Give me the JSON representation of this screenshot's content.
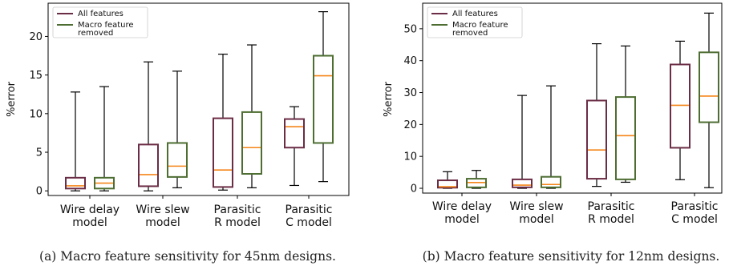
{
  "colors": {
    "all_features": "#6b2c45",
    "macro_removed": "#4d6d31",
    "median": "#f58518",
    "whisker": "#000000"
  },
  "chart_data": [
    {
      "type": "box",
      "caption": "(a) Macro feature sensitivity for 45nm designs.",
      "ylabel": "%error",
      "ylim": [
        -0.6,
        24.3
      ],
      "yticks": [
        0,
        5,
        10,
        15,
        20
      ],
      "categories": [
        [
          "Wire delay",
          "model"
        ],
        [
          "Wire slew",
          "model"
        ],
        [
          "Parasitic",
          "R model"
        ],
        [
          "Parasitic",
          "C model"
        ]
      ],
      "legend": {
        "position": "top-left",
        "entries": [
          [
            "All features"
          ],
          [
            "Macro feature",
            "removed"
          ]
        ]
      },
      "series": [
        {
          "name": "All features",
          "boxes": [
            {
              "min": 0.0,
              "q1": 0.3,
              "median": 0.65,
              "q3": 1.7,
              "max": 12.8
            },
            {
              "min": 0.0,
              "q1": 0.6,
              "median": 2.1,
              "q3": 6.0,
              "max": 16.7
            },
            {
              "min": 0.1,
              "q1": 0.5,
              "median": 2.7,
              "q3": 9.4,
              "max": 17.7
            },
            {
              "min": 0.7,
              "q1": 5.6,
              "median": 8.3,
              "q3": 9.3,
              "max": 10.9
            }
          ]
        },
        {
          "name": "Macro feature removed",
          "boxes": [
            {
              "min": 0.0,
              "q1": 0.3,
              "median": 1.0,
              "q3": 1.7,
              "max": 13.5
            },
            {
              "min": 0.4,
              "q1": 1.8,
              "median": 3.2,
              "q3": 6.2,
              "max": 15.5
            },
            {
              "min": 0.4,
              "q1": 2.2,
              "median": 5.6,
              "q3": 10.2,
              "max": 18.9
            },
            {
              "min": 1.2,
              "q1": 6.2,
              "median": 14.9,
              "q3": 17.5,
              "max": 23.2
            }
          ]
        }
      ]
    },
    {
      "type": "box",
      "caption": "(b) Macro feature sensitivity for 12nm designs.",
      "ylabel": "%error",
      "ylim": [
        -1.5,
        58.0
      ],
      "yticks": [
        0,
        10,
        20,
        30,
        40,
        50
      ],
      "categories": [
        [
          "Wire delay",
          "model"
        ],
        [
          "Wire slew",
          "model"
        ],
        [
          "Parasitic",
          "R model"
        ],
        [
          "Parasitic",
          "C model"
        ]
      ],
      "legend": {
        "position": "top-left",
        "entries": [
          [
            "All features"
          ],
          [
            "Macro feature",
            "removed"
          ]
        ]
      },
      "series": [
        {
          "name": "All features",
          "boxes": [
            {
              "min": 0.0,
              "q1": 0.2,
              "median": 0.5,
              "q3": 2.5,
              "max": 5.2
            },
            {
              "min": 0.0,
              "q1": 0.3,
              "median": 1.0,
              "q3": 2.8,
              "max": 29.1
            },
            {
              "min": 0.6,
              "q1": 3.0,
              "median": 12.0,
              "q3": 27.5,
              "max": 45.3
            },
            {
              "min": 2.7,
              "q1": 12.7,
              "median": 26.0,
              "q3": 38.8,
              "max": 46.1
            }
          ]
        },
        {
          "name": "Macro feature removed",
          "boxes": [
            {
              "min": 0.0,
              "q1": 0.3,
              "median": 1.8,
              "q3": 3.0,
              "max": 5.6
            },
            {
              "min": 0.0,
              "q1": 0.3,
              "median": 1.2,
              "q3": 3.6,
              "max": 32.1
            },
            {
              "min": 1.9,
              "q1": 2.8,
              "median": 16.5,
              "q3": 28.6,
              "max": 44.6
            },
            {
              "min": 0.2,
              "q1": 20.7,
              "median": 28.9,
              "q3": 42.6,
              "max": 54.9
            }
          ]
        }
      ]
    }
  ]
}
